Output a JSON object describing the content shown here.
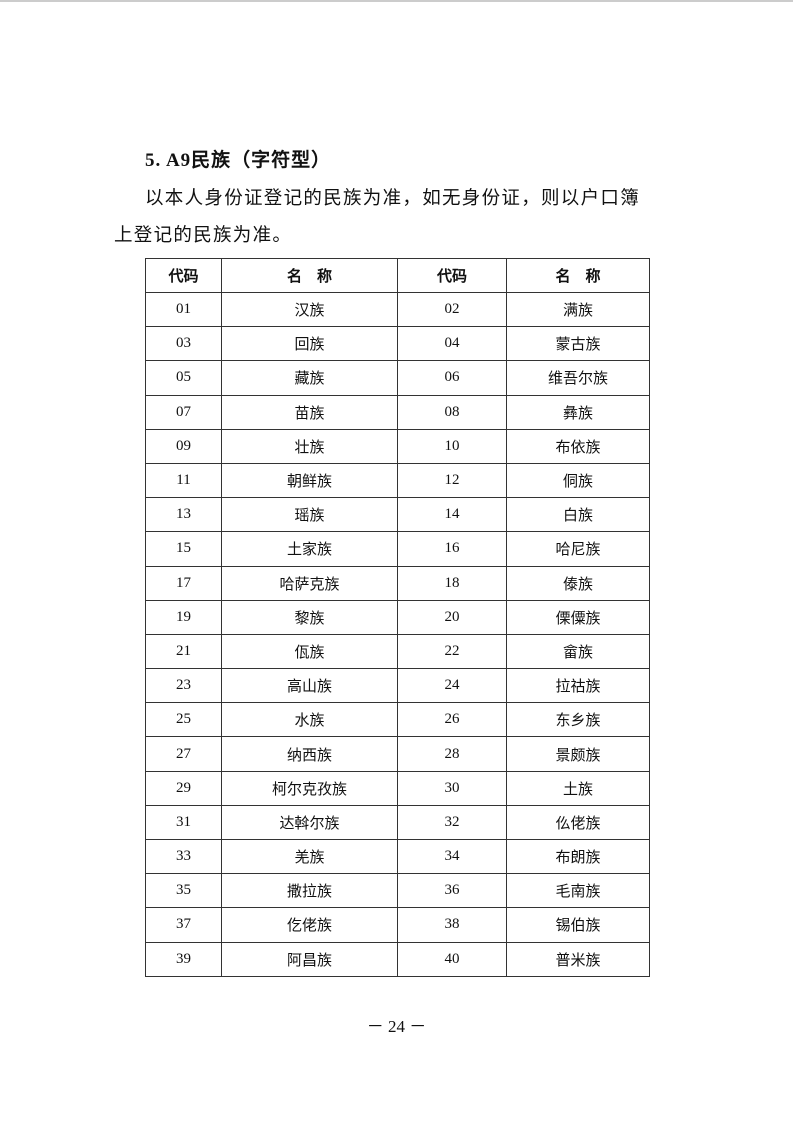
{
  "heading": "5. A9民族（字符型）",
  "paragraph": "以本人身份证登记的民族为准，如无身份证，则以户口簿上登记的民族为准。",
  "table": {
    "headers": [
      "代码",
      "名　称",
      "代码",
      "名　称"
    ],
    "rows": [
      [
        "01",
        "汉族",
        "02",
        "满族"
      ],
      [
        "03",
        "回族",
        "04",
        "蒙古族"
      ],
      [
        "05",
        "藏族",
        "06",
        "维吾尔族"
      ],
      [
        "07",
        "苗族",
        "08",
        "彝族"
      ],
      [
        "09",
        "壮族",
        "10",
        "布依族"
      ],
      [
        "11",
        "朝鲜族",
        "12",
        "侗族"
      ],
      [
        "13",
        "瑶族",
        "14",
        "白族"
      ],
      [
        "15",
        "土家族",
        "16",
        "哈尼族"
      ],
      [
        "17",
        "哈萨克族",
        "18",
        "傣族"
      ],
      [
        "19",
        "黎族",
        "20",
        "傈僳族"
      ],
      [
        "21",
        "佤族",
        "22",
        "畲族"
      ],
      [
        "23",
        "高山族",
        "24",
        "拉祜族"
      ],
      [
        "25",
        "水族",
        "26",
        "东乡族"
      ],
      [
        "27",
        "纳西族",
        "28",
        "景颇族"
      ],
      [
        "29",
        "柯尔克孜族",
        "30",
        "土族"
      ],
      [
        "31",
        "达斡尔族",
        "32",
        "仫佬族"
      ],
      [
        "33",
        "羌族",
        "34",
        "布朗族"
      ],
      [
        "35",
        "撒拉族",
        "36",
        "毛南族"
      ],
      [
        "37",
        "仡佬族",
        "38",
        "锡伯族"
      ],
      [
        "39",
        "阿昌族",
        "40",
        "普米族"
      ]
    ]
  },
  "footer": "－ 24 －"
}
